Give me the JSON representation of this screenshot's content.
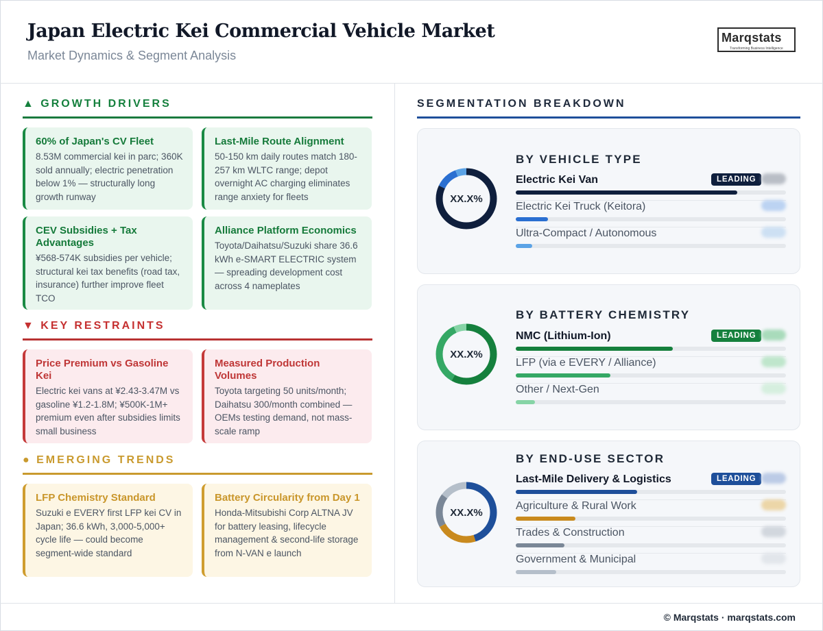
{
  "header": {
    "title": "Japan Electric Kei Commercial Vehicle Market",
    "subtitle": "Market Dynamics & Segment Analysis",
    "logo_text": "Marqstats",
    "logo_tagline": "Transforming Business Intelligence"
  },
  "drivers": {
    "heading": "GROWTH DRIVERS",
    "icon": "triangle-up-icon",
    "color": "#15803d",
    "cards": [
      {
        "title": "60% of Japan's CV Fleet",
        "text": "8.53M commercial kei in parc; 360K sold annually; electric penetration below 1% — structurally long growth runway"
      },
      {
        "title": "Last-Mile Route Alignment",
        "text": "50-150 km daily routes match 180-257 km WLTC range; depot overnight AC charging eliminates range anxiety for fleets"
      },
      {
        "title": "CEV Subsidies + Tax Advantages",
        "text": "¥568-574K subsidies per vehicle; structural kei tax benefits (road tax, insurance) further improve fleet TCO"
      },
      {
        "title": "Alliance Platform Economics",
        "text": "Toyota/Daihatsu/Suzuki share 36.6 kWh e-SMART ELECTRIC system — spreading development cost across 4 nameplates"
      }
    ]
  },
  "restraints": {
    "heading": "KEY RESTRAINTS",
    "icon": "triangle-down-icon",
    "color": "#c53030",
    "cards": [
      {
        "title": "Price Premium vs Gasoline Kei",
        "text": "Electric kei vans at ¥2.43-3.47M vs gasoline ¥1.2-1.8M; ¥500K-1M+ premium even after subsidies limits small business"
      },
      {
        "title": "Measured Production Volumes",
        "text": "Toyota targeting 50 units/month; Daihatsu 300/month combined — OEMs testing demand, not mass-scale ramp"
      }
    ]
  },
  "trends": {
    "heading": "EMERGING TRENDS",
    "icon": "circle-icon",
    "color": "#c99a2e",
    "cards": [
      {
        "title": "LFP Chemistry Standard",
        "text": "Suzuki e EVERY first LFP kei CV in Japan; 36.6 kWh, 3,000-5,000+ cycle life — could become segment-wide standard"
      },
      {
        "title": "Battery Circularity from Day 1",
        "text": "Honda-Mitsubishi Corp ALTNA JV for battery leasing, lifecycle management & second-life storage from N-VAN e launch"
      }
    ]
  },
  "segmentation": {
    "heading": "SEGMENTATION BREAKDOWN",
    "leading_label": "LEADING",
    "groups": [
      {
        "title": "BY VEHICLE TYPE",
        "center_label": "XX.X%",
        "rows": [
          {
            "name": "Electric Kei Van",
            "share": 0.82,
            "color": "#0f1f3d",
            "leading": true
          },
          {
            "name": "Electric Kei Truck (Keitora)",
            "share": 0.12,
            "color": "#2a6fd1",
            "leading": false
          },
          {
            "name": "Ultra-Compact / Autonomous",
            "share": 0.06,
            "color": "#5ba3e6",
            "leading": false
          }
        ]
      },
      {
        "title": "BY BATTERY CHEMISTRY",
        "center_label": "XX.X%",
        "rows": [
          {
            "name": "NMC (Lithium-Ion)",
            "share": 0.58,
            "color": "#15803d",
            "leading": true
          },
          {
            "name": "LFP (via e EVERY / Alliance)",
            "share": 0.35,
            "color": "#35a865",
            "leading": false
          },
          {
            "name": "Other / Next-Gen",
            "share": 0.07,
            "color": "#86d4a6",
            "leading": false
          }
        ]
      },
      {
        "title": "BY END-USE SECTOR",
        "center_label": "XX.X%",
        "rows": [
          {
            "name": "Last-Mile Delivery & Logistics",
            "share": 0.45,
            "color": "#1e4f9a",
            "leading": true
          },
          {
            "name": "Agriculture & Rural Work",
            "share": 0.22,
            "color": "#c98a1e",
            "leading": false
          },
          {
            "name": "Trades & Construction",
            "share": 0.18,
            "color": "#7a8797",
            "leading": false
          },
          {
            "name": "Government & Municipal",
            "share": 0.15,
            "color": "#b5bfca",
            "leading": false
          }
        ]
      }
    ]
  },
  "footer": {
    "text": "© Marqstats · marqstats.com"
  }
}
